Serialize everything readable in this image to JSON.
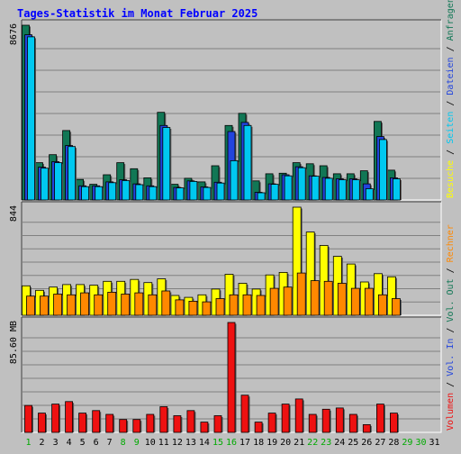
{
  "chart_data": {
    "type": "bar",
    "title": "Tages-Statistik im Monat Februar 2025",
    "categories": [
      "1",
      "2",
      "3",
      "4",
      "5",
      "6",
      "7",
      "8",
      "9",
      "10",
      "11",
      "12",
      "13",
      "14",
      "15",
      "16",
      "17",
      "18",
      "19",
      "20",
      "21",
      "22",
      "23",
      "24",
      "25",
      "26",
      "27",
      "28",
      "29",
      "30",
      "31"
    ],
    "weekend_days": [
      "1",
      "8",
      "9",
      "15",
      "16",
      "22",
      "23",
      "29",
      "30"
    ],
    "panels": [
      {
        "id": "requests",
        "y_tick_label": "8676",
        "ymax": 8676,
        "series": [
          {
            "name": "Anfragen",
            "color": "#117755",
            "values": [
              8676,
              1850,
              2250,
              3450,
              1020,
              780,
              1250,
              1850,
              1550,
              1100,
              4350,
              780,
              1080,
              900,
              1700,
              3700,
              4300,
              950,
              1300,
              1330,
              1850,
              1800,
              1700,
              1300,
              1300,
              1450,
              3900,
              1480,
              0,
              0,
              0
            ]
          },
          {
            "name": "Dateien",
            "color": "#2244dd",
            "values": [
              8200,
              1630,
              1900,
              2700,
              700,
              700,
              900,
              1000,
              800,
              700,
              3700,
              620,
              950,
              650,
              880,
              3400,
              3850,
              380,
              800,
              1250,
              1650,
              1200,
              1120,
              1050,
              1050,
              800,
              3150,
              1100,
              0,
              0,
              0
            ]
          },
          {
            "name": "Seiten",
            "color": "#00c8f0",
            "values": [
              8100,
              1580,
              1850,
              2650,
              660,
              660,
              860,
              960,
              760,
              660,
              3600,
              600,
              920,
              620,
              840,
              1950,
              3700,
              360,
              780,
              1200,
              1600,
              1180,
              1080,
              1000,
              1000,
              560,
              3000,
              1050,
              0,
              0,
              0
            ]
          }
        ]
      },
      {
        "id": "visits",
        "y_tick_label": "844",
        "ymax": 844,
        "series": [
          {
            "name": "Besuche",
            "color": "#ffff00",
            "values": [
              230,
              195,
              220,
              240,
              240,
              235,
              265,
              265,
              280,
              255,
              285,
              155,
              140,
              160,
              205,
              320,
              250,
              205,
              315,
              335,
              844,
              650,
              545,
              460,
              400,
              260,
              325,
              300,
              0,
              0,
              0
            ]
          },
          {
            "name": "Rechner",
            "color": "#ff8800",
            "values": [
              150,
              150,
              165,
              160,
              175,
              160,
              180,
              165,
              175,
              160,
              190,
              120,
              110,
              105,
              130,
              160,
              160,
              155,
              210,
              220,
              330,
              270,
              265,
              250,
              210,
              210,
              160,
              130,
              0,
              0,
              0
            ]
          }
        ]
      },
      {
        "id": "volume",
        "y_tick_label": "85.60 MB",
        "ymax": 85.6,
        "series": [
          {
            "name": "Volumen",
            "color": "#ee1111",
            "values": [
              21,
              15,
              22,
              24,
              15,
              17,
              14,
              10,
              10,
              14,
              20,
              13,
              17,
              8,
              13,
              85.6,
              29,
              8,
              15,
              22,
              26,
              14,
              18,
              19,
              14,
              6,
              22,
              15,
              0,
              0,
              0
            ]
          }
        ]
      }
    ],
    "right_axis_groups": [
      {
        "labels": [
          {
            "text": "Anfragen",
            "color": "#117755"
          },
          {
            "text": "Dateien",
            "color": "#2244dd"
          },
          {
            "text": "Seiten",
            "color": "#00c8f0"
          },
          {
            "text": "Besuche",
            "color": "#ffff00"
          }
        ]
      },
      {
        "labels": [
          {
            "text": "Rechner",
            "color": "#ff8800"
          },
          {
            "text": "Vol. Out",
            "color": "#117755"
          },
          {
            "text": "Vol. In",
            "color": "#2244dd"
          },
          {
            "text": "Volumen",
            "color": "#ee1111"
          }
        ]
      }
    ],
    "grid": true,
    "colors": {
      "background": "#c0c0c0",
      "title": "#0000ff",
      "weekday_label": "#000000",
      "weekend_label": "#00aa00",
      "grid": "#808080"
    }
  }
}
